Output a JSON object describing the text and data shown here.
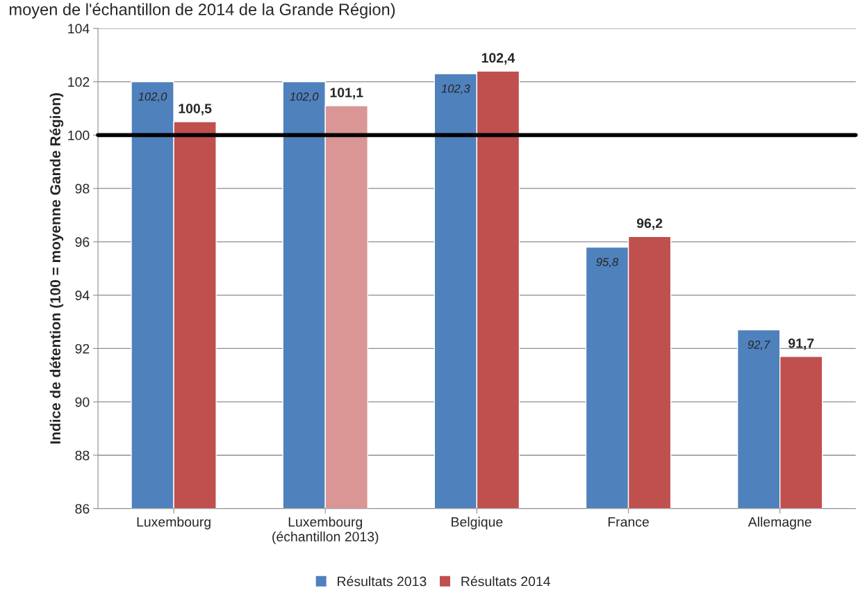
{
  "chart_data": {
    "type": "bar",
    "title": "moyen de l'échantillon de 2014 de la Grande Région)",
    "ylabel": "Indice de détention (100 = moyenne Gande Région)",
    "categories": [
      "Luxembourg",
      "Luxembourg\n(échantillon 2013)",
      "Belgique",
      "France",
      "Allemagne"
    ],
    "series": [
      {
        "name": "Résultats 2013",
        "color": "#4f81bd",
        "values": [
          102.0,
          102.0,
          102.3,
          95.8,
          92.7
        ],
        "value_labels": [
          "102,0",
          "102,0",
          "102,3",
          "95,8",
          "92,7"
        ]
      },
      {
        "name": "Résultats 2014",
        "color": "#c0504d",
        "colors": [
          "#c0504d",
          "#d99694",
          "#c0504d",
          "#c0504d",
          "#c0504d"
        ],
        "values": [
          100.5,
          101.1,
          102.4,
          96.2,
          91.7
        ],
        "value_labels": [
          "100,5",
          "101,1",
          "102,4",
          "96,2",
          "91,7"
        ]
      }
    ],
    "ylim": [
      86,
      104
    ],
    "yticks": [
      86,
      88,
      90,
      92,
      94,
      96,
      98,
      100,
      102,
      104
    ],
    "ref_lines": [
      {
        "axis": "y",
        "value": 100,
        "color": "#000000"
      }
    ],
    "grid": "y",
    "legend": "bottom"
  }
}
